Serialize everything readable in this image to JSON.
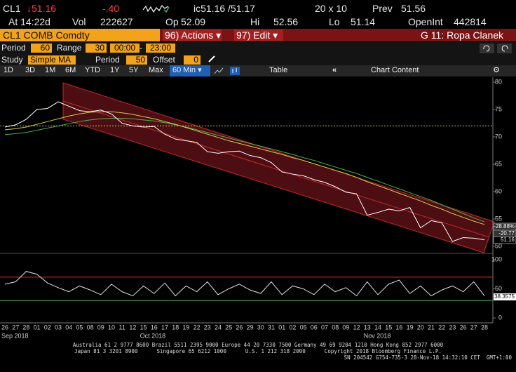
{
  "header": {
    "ticker": "CL1",
    "last": "↓51.16",
    "change": "-.40",
    "bid_ask": "ic51.16 /51.17",
    "size": "20 x 10",
    "prev_label": "Prev",
    "prev": "51.56",
    "time": "At 14:22d",
    "vol_label": "Vol",
    "vol": "222627",
    "open_label": "Op",
    "open": "52.09",
    "high_label": "Hi",
    "high": "52.56",
    "low_label": "Lo",
    "low": "51.14",
    "oi_label": "OpenInt",
    "oi": "442814"
  },
  "menu": {
    "security": "CL1 COMB Comdty",
    "actions": "96) Actions ▾",
    "edit": "97) Edit ▾",
    "tab": "G 11: Ropa Clanek"
  },
  "settings": {
    "period_label": "Period",
    "period": "60",
    "range_label": "Range",
    "range": "30",
    "start": "00:00",
    "dash": "-",
    "end": "23:00",
    "study_label": "Study",
    "study": "Simple MA",
    "study_period_label": "Period",
    "study_period": "50",
    "offset_label": "Offset",
    "offset": "0"
  },
  "toolbar": {
    "ranges": [
      "1D",
      "3D",
      "1M",
      "6M",
      "YTD",
      "1Y",
      "5Y",
      "Max"
    ],
    "interval": "60 Min ▾",
    "table": "Table",
    "chart_content": "Chart Content"
  },
  "chart_data": [
    {
      "type": "line",
      "categories": [
        "26",
        "27",
        "28",
        "01",
        "02",
        "03",
        "04",
        "05",
        "08",
        "09",
        "10",
        "11",
        "12",
        "15",
        "16",
        "17",
        "18",
        "19",
        "22",
        "23",
        "24",
        "25",
        "26",
        "29",
        "30",
        "31",
        "01",
        "02",
        "05",
        "06",
        "07",
        "08",
        "09",
        "12",
        "13",
        "14",
        "15",
        "16",
        "19",
        "20",
        "21",
        "22",
        "23",
        "26",
        "27",
        "28"
      ],
      "months": [
        {
          "index": 0,
          "label": "Sep 2018"
        },
        {
          "index": 13,
          "label": "Oct 2018"
        },
        {
          "index": 34,
          "label": "Nov 2018"
        }
      ],
      "series": [
        {
          "name": "Price",
          "color": "#ffffff",
          "values": [
            71.8,
            72.2,
            73.2,
            75,
            75.2,
            76.4,
            75.6,
            74.8,
            74.6,
            74.9,
            74.2,
            72.5,
            72,
            71.8,
            71.9,
            70.5,
            69.6,
            69.3,
            69,
            67.3,
            67,
            67.3,
            67.4,
            66.6,
            66.2,
            65.3,
            63.6,
            63.2,
            62.9,
            62.2,
            61.7,
            60.9,
            59.9,
            59.6,
            55.7,
            56.2,
            56.8,
            56.5,
            57.1,
            53.4,
            54.7,
            54.3,
            50.9,
            51.6,
            51.5,
            51.2
          ]
        },
        {
          "name": "MA Yellow",
          "color": "#d8c84a",
          "values": [
            71.3,
            71.5,
            71.8,
            72.3,
            72.8,
            73.3,
            73.8,
            74.2,
            74.5,
            74.6,
            74.6,
            74.4,
            74.1,
            73.7,
            73.3,
            72.8,
            72.3,
            71.7,
            71.1,
            70.5,
            69.9,
            69.3,
            68.8,
            68.3,
            67.8,
            67.3,
            66.8,
            66.2,
            65.7,
            65.1,
            64.5,
            63.9,
            63.3,
            62.6,
            61.8,
            61.1,
            60.4,
            59.7,
            59.0,
            58.3,
            57.5,
            56.8,
            56.0,
            55.3,
            54.6,
            54.0
          ]
        },
        {
          "name": "MA Green",
          "color": "#4caf50",
          "values": [
            70.4,
            70.6,
            70.8,
            71.2,
            71.6,
            72,
            72.4,
            72.8,
            73.1,
            73.3,
            73.4,
            73.4,
            73.3,
            73.1,
            72.9,
            72.6,
            72.2,
            71.8,
            71.3,
            70.8,
            70.3,
            69.8,
            69.3,
            68.8,
            68.3,
            67.8,
            67.3,
            66.8,
            66.2,
            65.7,
            65.1,
            64.5,
            63.9,
            63.3,
            62.6,
            61.9,
            61.2,
            60.5,
            59.8,
            59.1,
            58.4,
            57.6,
            56.8,
            56.0,
            55.2,
            54.5
          ]
        }
      ],
      "ylim": [
        48.85,
        80.9
      ],
      "yticks": [
        50,
        55,
        60,
        65,
        70,
        75,
        80
      ],
      "hline": 72,
      "hline_color": "#d8c84a",
      "tags": [
        "-28.88%",
        "-20.77",
        "51.16"
      ]
    },
    {
      "type": "line",
      "series": [
        {
          "name": "Oscillator",
          "color": "#e0e0e0",
          "values": [
            58,
            62,
            80,
            75,
            60,
            52,
            45,
            55,
            48,
            40,
            58,
            45,
            38,
            55,
            42,
            60,
            38,
            55,
            45,
            62,
            40,
            50,
            58,
            48,
            42,
            62,
            40,
            55,
            50,
            40,
            58,
            45,
            52,
            38,
            62,
            40,
            58,
            65,
            42,
            55,
            38,
            48,
            55,
            45,
            62,
            38
          ]
        }
      ],
      "ylim": [
        -8.4,
        109.6
      ],
      "yticks": [
        0,
        50,
        100
      ],
      "levels": [
        {
          "value": 70,
          "color": "#d32f2f"
        },
        {
          "value": 30,
          "color": "#4caf50"
        }
      ],
      "tag": "38.3575"
    }
  ],
  "footer": [
    "Australia 61 2 9777 8600 Brazil 5511 2395 9000 Europe 44 20 7330 7500 Germany 49 69 9204 1210 Hong Kong 852 2977 6000",
    "Japan 81 3 3201 8900      Singapore 65 6212 1000      U.S. 1 212 318 2000      Copyright 2018 Bloomberg Finance L.P.",
    "SN 204542 G754-735-3 28-Nov-18 14:32:10 CET  GMT+1:00"
  ]
}
